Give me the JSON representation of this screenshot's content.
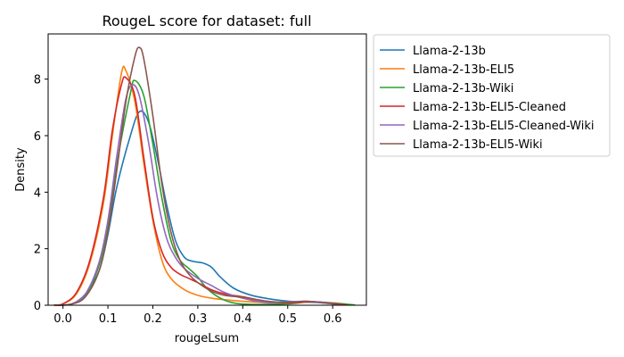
{
  "chart_data": {
    "type": "line",
    "title": "RougeL score for dataset: full",
    "xlabel": "rougeLsum",
    "ylabel": "Density",
    "xlim": [
      -0.033,
      0.675
    ],
    "ylim": [
      0,
      9.6
    ],
    "xticks": [
      "0.0",
      "0.1",
      "0.2",
      "0.3",
      "0.4",
      "0.5",
      "0.6"
    ],
    "yticks": [
      "0",
      "2",
      "4",
      "6",
      "8"
    ],
    "grid": false,
    "legend_position": "outside-right-top",
    "series": [
      {
        "name": "Llama-2-13b",
        "color": "#1f77b4",
        "points": [
          [
            -0.02,
            0
          ],
          [
            0.02,
            0.05
          ],
          [
            0.05,
            0.4
          ],
          [
            0.08,
            1.2
          ],
          [
            0.1,
            2.5
          ],
          [
            0.12,
            4.2
          ],
          [
            0.15,
            6.0
          ],
          [
            0.17,
            6.85
          ],
          [
            0.19,
            6.5
          ],
          [
            0.21,
            5.2
          ],
          [
            0.23,
            3.6
          ],
          [
            0.25,
            2.3
          ],
          [
            0.27,
            1.7
          ],
          [
            0.29,
            1.55
          ],
          [
            0.31,
            1.5
          ],
          [
            0.33,
            1.35
          ],
          [
            0.35,
            1.0
          ],
          [
            0.38,
            0.6
          ],
          [
            0.42,
            0.35
          ],
          [
            0.47,
            0.2
          ],
          [
            0.52,
            0.12
          ],
          [
            0.56,
            0.1
          ],
          [
            0.6,
            0.05
          ],
          [
            0.63,
            0.01
          ]
        ]
      },
      {
        "name": "Llama-2-13b-ELI5",
        "color": "#ff7f0e",
        "points": [
          [
            -0.02,
            0
          ],
          [
            0.0,
            0.05
          ],
          [
            0.03,
            0.4
          ],
          [
            0.06,
            1.5
          ],
          [
            0.09,
            3.6
          ],
          [
            0.11,
            6.0
          ],
          [
            0.13,
            8.2
          ],
          [
            0.14,
            8.3
          ],
          [
            0.16,
            7.2
          ],
          [
            0.18,
            5.0
          ],
          [
            0.2,
            3.0
          ],
          [
            0.22,
            1.6
          ],
          [
            0.24,
            0.95
          ],
          [
            0.27,
            0.55
          ],
          [
            0.3,
            0.35
          ],
          [
            0.33,
            0.25
          ],
          [
            0.37,
            0.18
          ],
          [
            0.42,
            0.12
          ],
          [
            0.47,
            0.08
          ],
          [
            0.52,
            0.1
          ],
          [
            0.56,
            0.12
          ],
          [
            0.6,
            0.05
          ],
          [
            0.63,
            0.01
          ]
        ]
      },
      {
        "name": "Llama-2-13b-Wiki",
        "color": "#2ca02c",
        "points": [
          [
            -0.01,
            0
          ],
          [
            0.02,
            0.05
          ],
          [
            0.05,
            0.35
          ],
          [
            0.08,
            1.4
          ],
          [
            0.1,
            2.8
          ],
          [
            0.12,
            5.0
          ],
          [
            0.15,
            7.5
          ],
          [
            0.16,
            7.95
          ],
          [
            0.18,
            7.4
          ],
          [
            0.2,
            5.7
          ],
          [
            0.22,
            3.8
          ],
          [
            0.24,
            2.3
          ],
          [
            0.26,
            1.6
          ],
          [
            0.28,
            1.3
          ],
          [
            0.3,
            1.0
          ],
          [
            0.32,
            0.6
          ],
          [
            0.35,
            0.25
          ],
          [
            0.38,
            0.08
          ],
          [
            0.42,
            0.03
          ],
          [
            0.5,
            0.05
          ],
          [
            0.55,
            0.12
          ],
          [
            0.6,
            0.08
          ],
          [
            0.65,
            0.01
          ]
        ]
      },
      {
        "name": "Llama-2-13b-ELI5-Cleaned",
        "color": "#d62728",
        "points": [
          [
            -0.02,
            0
          ],
          [
            0.0,
            0.05
          ],
          [
            0.03,
            0.45
          ],
          [
            0.06,
            1.6
          ],
          [
            0.09,
            3.8
          ],
          [
            0.11,
            6.2
          ],
          [
            0.13,
            7.8
          ],
          [
            0.14,
            8.05
          ],
          [
            0.16,
            7.4
          ],
          [
            0.18,
            5.2
          ],
          [
            0.2,
            3.1
          ],
          [
            0.22,
            1.9
          ],
          [
            0.24,
            1.35
          ],
          [
            0.26,
            1.1
          ],
          [
            0.28,
            0.95
          ],
          [
            0.3,
            0.8
          ],
          [
            0.33,
            0.55
          ],
          [
            0.36,
            0.4
          ],
          [
            0.4,
            0.3
          ],
          [
            0.45,
            0.15
          ],
          [
            0.5,
            0.08
          ],
          [
            0.55,
            0.12
          ],
          [
            0.6,
            0.07
          ],
          [
            0.63,
            0.01
          ]
        ]
      },
      {
        "name": "Llama-2-13b-ELI5-Cleaned-Wiki",
        "color": "#9467bd",
        "points": [
          [
            -0.01,
            0
          ],
          [
            0.02,
            0.05
          ],
          [
            0.05,
            0.4
          ],
          [
            0.08,
            1.5
          ],
          [
            0.1,
            3.0
          ],
          [
            0.12,
            5.3
          ],
          [
            0.14,
            7.3
          ],
          [
            0.155,
            7.8
          ],
          [
            0.17,
            7.4
          ],
          [
            0.19,
            5.8
          ],
          [
            0.21,
            3.8
          ],
          [
            0.23,
            2.4
          ],
          [
            0.25,
            1.7
          ],
          [
            0.27,
            1.3
          ],
          [
            0.3,
            0.95
          ],
          [
            0.33,
            0.7
          ],
          [
            0.36,
            0.45
          ],
          [
            0.4,
            0.25
          ],
          [
            0.45,
            0.1
          ],
          [
            0.5,
            0.12
          ],
          [
            0.54,
            0.14
          ],
          [
            0.58,
            0.08
          ],
          [
            0.62,
            0.01
          ]
        ]
      },
      {
        "name": "Llama-2-13b-ELI5-Wiki",
        "color": "#8c564b",
        "points": [
          [
            -0.01,
            0
          ],
          [
            0.02,
            0.04
          ],
          [
            0.05,
            0.3
          ],
          [
            0.08,
            1.2
          ],
          [
            0.1,
            2.6
          ],
          [
            0.12,
            4.8
          ],
          [
            0.14,
            7.2
          ],
          [
            0.16,
            8.8
          ],
          [
            0.17,
            9.12
          ],
          [
            0.18,
            8.7
          ],
          [
            0.2,
            6.7
          ],
          [
            0.22,
            4.3
          ],
          [
            0.24,
            2.6
          ],
          [
            0.26,
            1.6
          ],
          [
            0.28,
            1.1
          ],
          [
            0.3,
            0.8
          ],
          [
            0.33,
            0.5
          ],
          [
            0.36,
            0.35
          ],
          [
            0.4,
            0.28
          ],
          [
            0.45,
            0.15
          ],
          [
            0.5,
            0.1
          ],
          [
            0.54,
            0.14
          ],
          [
            0.58,
            0.1
          ],
          [
            0.62,
            0.01
          ]
        ]
      }
    ]
  }
}
